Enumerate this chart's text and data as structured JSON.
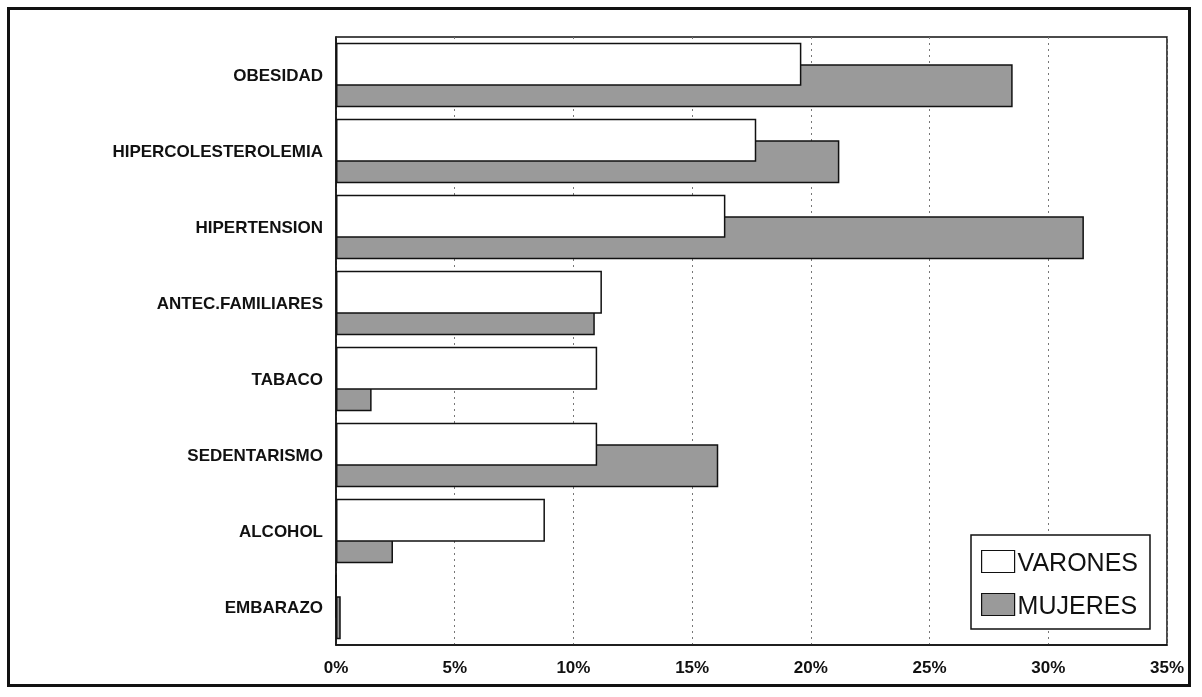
{
  "chart_data": {
    "type": "bar",
    "orientation": "horizontal",
    "categories": [
      "OBESIDAD",
      "HIPERCOLESTEROLEMIA",
      "HIPERTENSION",
      "ANTEC.FAMILIARES",
      "TABACO",
      "SEDENTARISMO",
      "ALCOHOL",
      "EMBARAZO"
    ],
    "series": [
      {
        "name": "VARONES",
        "color": "#ffffff",
        "values": [
          19.6,
          17.7,
          16.4,
          11.2,
          11.0,
          11.0,
          8.8,
          0
        ]
      },
      {
        "name": "MUJERES",
        "color": "#9a9a9a",
        "values": [
          28.5,
          21.2,
          31.5,
          10.9,
          1.5,
          16.1,
          2.4,
          0.2
        ]
      }
    ],
    "xlim": [
      0,
      35
    ],
    "xticks": [
      {
        "value": 0,
        "label": "0%"
      },
      {
        "value": 5,
        "label": "5%"
      },
      {
        "value": 10,
        "label": "10%"
      },
      {
        "value": 15,
        "label": "15%"
      },
      {
        "value": 20,
        "label": "20%"
      },
      {
        "value": 25,
        "label": "25%"
      },
      {
        "value": 30,
        "label": "30%"
      },
      {
        "value": 35,
        "label": "35%"
      }
    ],
    "grid": "x",
    "legend": "bottom right"
  }
}
